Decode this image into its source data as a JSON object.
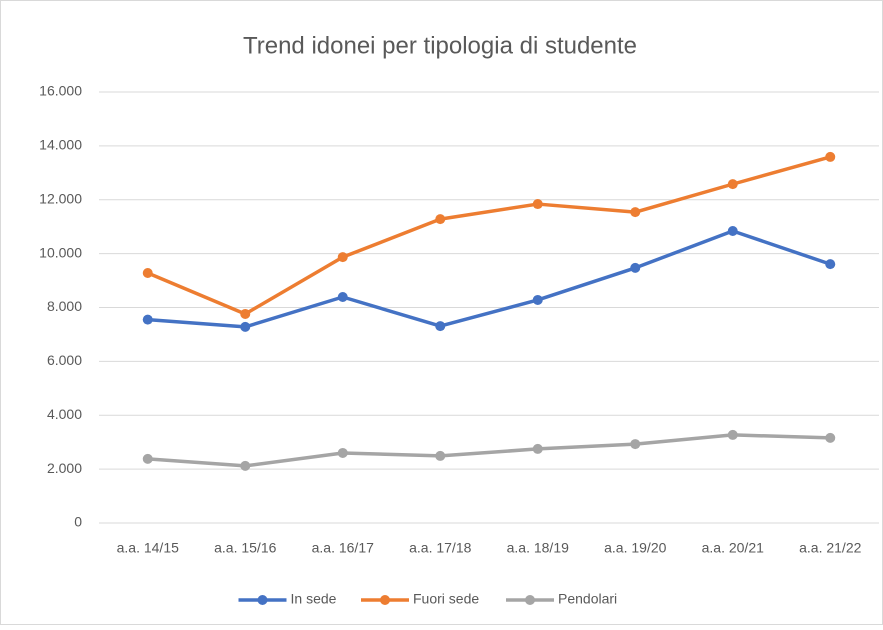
{
  "chart_data": {
    "type": "line",
    "title": "Trend idonei per tipologia di studente",
    "categories": [
      "a.a. 14/15",
      "a.a. 15/16",
      "a.a. 16/17",
      "a.a. 17/18",
      "a.a. 18/19",
      "a.a. 19/20",
      "a.a. 20/21",
      "a.a. 21/22"
    ],
    "series": [
      {
        "name": "In sede",
        "color": "#4472c4",
        "values": [
          7550,
          7280,
          8390,
          7310,
          8280,
          9470,
          10840,
          9610
        ]
      },
      {
        "name": "Fuori sede",
        "color": "#ed7d31",
        "values": [
          9280,
          7760,
          9870,
          11280,
          11840,
          11540,
          12580,
          13590
        ]
      },
      {
        "name": "Pendolari",
        "color": "#a5a5a5",
        "values": [
          2380,
          2120,
          2600,
          2490,
          2750,
          2930,
          3270,
          3160
        ]
      }
    ],
    "ylim": [
      0,
      16000
    ],
    "yticks": [
      0,
      {
        "value": 2000,
        "label": "2.000"
      },
      {
        "value": 4000,
        "label": "4.000"
      },
      {
        "value": 6000,
        "label": "6.000"
      },
      {
        "value": 8000,
        "label": "8.000"
      },
      {
        "value": 10000,
        "label": "10.000"
      },
      {
        "value": 12000,
        "label": "12.000"
      },
      {
        "value": 14000,
        "label": "14.000"
      },
      {
        "value": 16000,
        "label": "16.000"
      }
    ],
    "grid": true,
    "legend": "bottom"
  }
}
